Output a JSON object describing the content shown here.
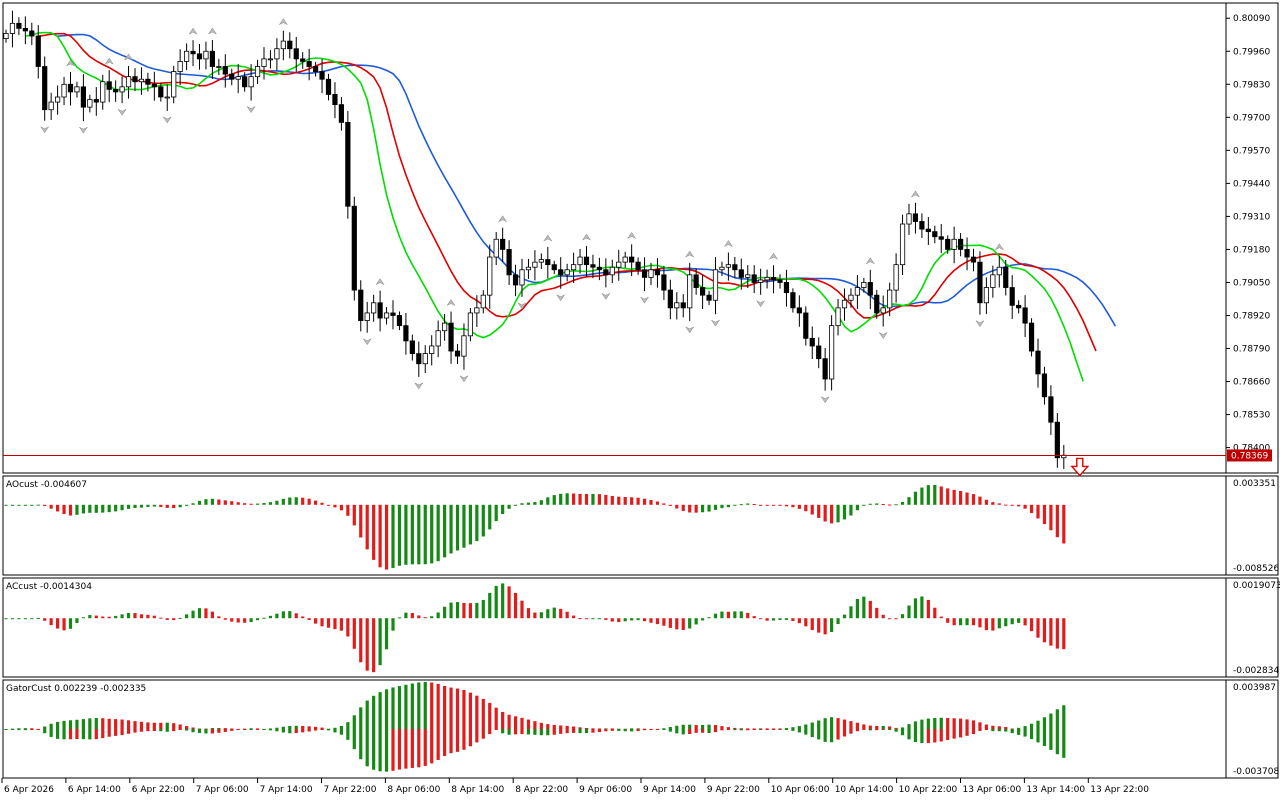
{
  "chart_data": {
    "type": "candlestick",
    "current_price": "0.78369",
    "price_axis": [
      "0.80090",
      "0.79960",
      "0.79830",
      "0.79700",
      "0.79570",
      "0.79440",
      "0.79310",
      "0.79180",
      "0.79050",
      "0.78920",
      "0.78790",
      "0.78660",
      "0.78530",
      "0.78400"
    ],
    "ylim": [
      0.783,
      0.8015
    ],
    "time_axis": [
      "6 Apr 2026",
      "6 Apr 14:00",
      "6 Apr 22:00",
      "7 Apr 06:00",
      "7 Apr 14:00",
      "7 Apr 22:00",
      "8 Apr 06:00",
      "8 Apr 14:00",
      "8 Apr 22:00",
      "9 Apr 06:00",
      "9 Apr 14:00",
      "9 Apr 22:00",
      "10 Apr 06:00",
      "10 Apr 14:00",
      "10 Apr 22:00",
      "13 Apr 06:00",
      "13 Apr 14:00",
      "13 Apr 22:00"
    ],
    "closes": [
      0.8003,
      0.8007,
      0.8005,
      0.8004,
      0.8002,
      0.799,
      0.7973,
      0.7976,
      0.7978,
      0.7983,
      0.798,
      0.7982,
      0.7974,
      0.7977,
      0.7976,
      0.7984,
      0.7981,
      0.798,
      0.7982,
      0.7986,
      0.7984,
      0.7985,
      0.7983,
      0.7982,
      0.7978,
      0.7978,
      0.7988,
      0.7992,
      0.7996,
      0.7995,
      0.7993,
      0.7996,
      0.799,
      0.799,
      0.7987,
      0.7985,
      0.7986,
      0.7982,
      0.7986,
      0.799,
      0.7993,
      0.7993,
      0.7997,
      0.8,
      0.7997,
      0.7993,
      0.7992,
      0.799,
      0.7988,
      0.7985,
      0.7979,
      0.7975,
      0.7968,
      0.7935,
      0.7902,
      0.789,
      0.7893,
      0.7897,
      0.7891,
      0.7893,
      0.7892,
      0.7888,
      0.7882,
      0.7877,
      0.7873,
      0.7877,
      0.788,
      0.7886,
      0.7889,
      0.7878,
      0.7876,
      0.7884,
      0.7893,
      0.7895,
      0.79,
      0.7915,
      0.7922,
      0.7918,
      0.7908,
      0.7904,
      0.791,
      0.7911,
      0.7913,
      0.7914,
      0.7912,
      0.791,
      0.7908,
      0.791,
      0.7912,
      0.7915,
      0.7912,
      0.7911,
      0.791,
      0.7908,
      0.7911,
      0.7913,
      0.7915,
      0.7913,
      0.791,
      0.7907,
      0.791,
      0.7908,
      0.7902,
      0.7895,
      0.7897,
      0.7895,
      0.7908,
      0.7903,
      0.79,
      0.7898,
      0.791,
      0.7911,
      0.7912,
      0.791,
      0.7907,
      0.7908,
      0.7905,
      0.7906,
      0.7907,
      0.7906,
      0.7905,
      0.7901,
      0.7895,
      0.7893,
      0.7883,
      0.788,
      0.7875,
      0.7867,
      0.7888,
      0.7895,
      0.7898,
      0.79,
      0.7903,
      0.7905,
      0.79,
      0.7893,
      0.7895,
      0.7902,
      0.7912,
      0.7928,
      0.7932,
      0.7929,
      0.7926,
      0.7925,
      0.7923,
      0.7922,
      0.7918,
      0.7922,
      0.7918,
      0.7915,
      0.7913,
      0.7897,
      0.7903,
      0.7908,
      0.7911,
      0.7903,
      0.7896,
      0.7895,
      0.7889,
      0.7878,
      0.7869,
      0.786,
      0.785,
      0.7836,
      0.7837
    ],
    "moving_averages": [
      {
        "color": "#1e5bd8",
        "period": 13
      },
      {
        "color": "#e00000",
        "period": 8
      },
      {
        "color": "#00dd00",
        "period": 5
      }
    ],
    "sell_arrow_color": "#e00000",
    "panels": [
      {
        "label": "AOcust -0.004607",
        "max_label": "0.003351",
        "min_label": "-0.008526"
      },
      {
        "label": "ACcust -0.0014304",
        "max_label": "0.0019073",
        "min_label": "-0.0028342"
      },
      {
        "label": "GatorCust 0.002239 -0.002335",
        "max_label": "0.003987",
        "min_label": "-0.003708"
      }
    ]
  }
}
